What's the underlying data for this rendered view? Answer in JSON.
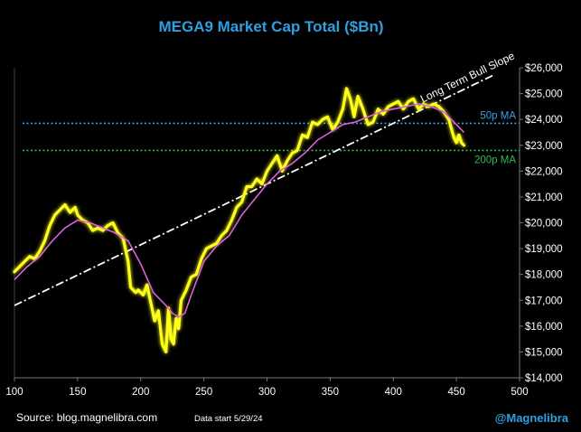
{
  "title": "MEGA9 Market Cap Total ($Bn)",
  "footer": {
    "source": "Source: blog.magnelibra.com",
    "data_start": "Data start 5/29/24",
    "handle": "@Magnelibra"
  },
  "colors": {
    "background": "#000000",
    "title": "#2f9fe0",
    "price": "#ffff1a",
    "moving_average": "#e060e0",
    "ma50": "#3aa0e8",
    "ma200": "#2fbf4f",
    "trendline": "#ffffff",
    "handle": "#2f9fe0"
  },
  "chart_data": {
    "type": "line",
    "title": "MEGA9 Market Cap Total ($Bn)",
    "xlim": [
      100,
      500
    ],
    "ylim": [
      14000,
      26000
    ],
    "x_ticks": [
      100,
      150,
      200,
      250,
      300,
      350,
      400,
      450,
      500
    ],
    "x_tick_labels": [
      "100",
      "150",
      "200",
      "250",
      "300",
      "350",
      "400",
      "450",
      "500"
    ],
    "y_ticks": [
      14000,
      15000,
      16000,
      17000,
      18000,
      19000,
      20000,
      21000,
      22000,
      23000,
      24000,
      25000,
      26000
    ],
    "y_tick_labels": [
      "$14,000",
      "$15,000",
      "$16,000",
      "$17,000",
      "$18,000",
      "$19,000",
      "$20,000",
      "$21,000",
      "$22,000",
      "$23,000",
      "$24,000",
      "$25,000",
      "$26,000"
    ],
    "grid": false,
    "series": [
      {
        "style": "solid-glow",
        "x": [
          100,
          104,
          108,
          112,
          116,
          120,
          124,
          128,
          132,
          136,
          140,
          144,
          148,
          150,
          154,
          158,
          162,
          166,
          170,
          174,
          178,
          182,
          186,
          190,
          192,
          196,
          198,
          202,
          205,
          208,
          211,
          214,
          217,
          220,
          222,
          224,
          226,
          228,
          230,
          232,
          236,
          240,
          244,
          248,
          252,
          256,
          260,
          264,
          268,
          272,
          276,
          280,
          284,
          288,
          292,
          296,
          300,
          304,
          308,
          312,
          316,
          320,
          324,
          328,
          332,
          336,
          340,
          344,
          348,
          352,
          356,
          360,
          363,
          366,
          369,
          372,
          376,
          380,
          384,
          388,
          392,
          396,
          400,
          404,
          408,
          412,
          416,
          420,
          424,
          428,
          432,
          436,
          440,
          444,
          448,
          450,
          452,
          454,
          456
        ],
        "y": [
          18100,
          18300,
          18500,
          18700,
          18600,
          18900,
          19300,
          19900,
          20300,
          20500,
          20700,
          20400,
          20600,
          20300,
          20100,
          20000,
          19700,
          19800,
          19700,
          19900,
          20000,
          19600,
          19400,
          18500,
          17500,
          17300,
          17400,
          17200,
          17600,
          16900,
          16200,
          16600,
          15300,
          15000,
          16700,
          15500,
          15300,
          16300,
          15900,
          17000,
          17400,
          17900,
          18000,
          18600,
          19000,
          19100,
          19200,
          19500,
          19700,
          20100,
          20600,
          20800,
          21400,
          21400,
          21700,
          21500,
          22000,
          22300,
          22600,
          22000,
          22400,
          22700,
          22800,
          23400,
          23300,
          23900,
          23800,
          24000,
          24100,
          23600,
          23900,
          24400,
          25200,
          24800,
          24100,
          24900,
          24400,
          23800,
          23900,
          24400,
          24200,
          24500,
          24600,
          24700,
          24400,
          24700,
          24800,
          24400,
          24600,
          24500,
          24600,
          24500,
          24300,
          24000,
          23300,
          23100,
          23400,
          23100,
          23000
        ]
      },
      {
        "style": "moving-average",
        "x": [
          100,
          110,
          120,
          130,
          140,
          150,
          160,
          170,
          180,
          190,
          200,
          210,
          220,
          225,
          230,
          235,
          240,
          250,
          260,
          270,
          280,
          290,
          300,
          310,
          320,
          330,
          340,
          350,
          360,
          370,
          380,
          390,
          400,
          410,
          420,
          430,
          440,
          450,
          456
        ],
        "y": [
          17800,
          18300,
          18700,
          19300,
          19800,
          20100,
          20000,
          19800,
          19600,
          19300,
          18400,
          17300,
          16800,
          16500,
          16350,
          16500,
          17200,
          18500,
          19100,
          19500,
          20300,
          20900,
          21500,
          22000,
          22300,
          22700,
          23200,
          23500,
          23800,
          23900,
          24100,
          24300,
          24400,
          24500,
          24600,
          24500,
          24300,
          23800,
          23500
        ]
      }
    ],
    "reference_lines": [
      {
        "name": "50p MA",
        "y": 23850
      },
      {
        "name": "200p MA",
        "y": 22800
      }
    ],
    "trendline": {
      "name": "Long Term Bull Slope",
      "x": [
        100,
        500
      ],
      "y": [
        16800,
        26200
      ]
    }
  }
}
